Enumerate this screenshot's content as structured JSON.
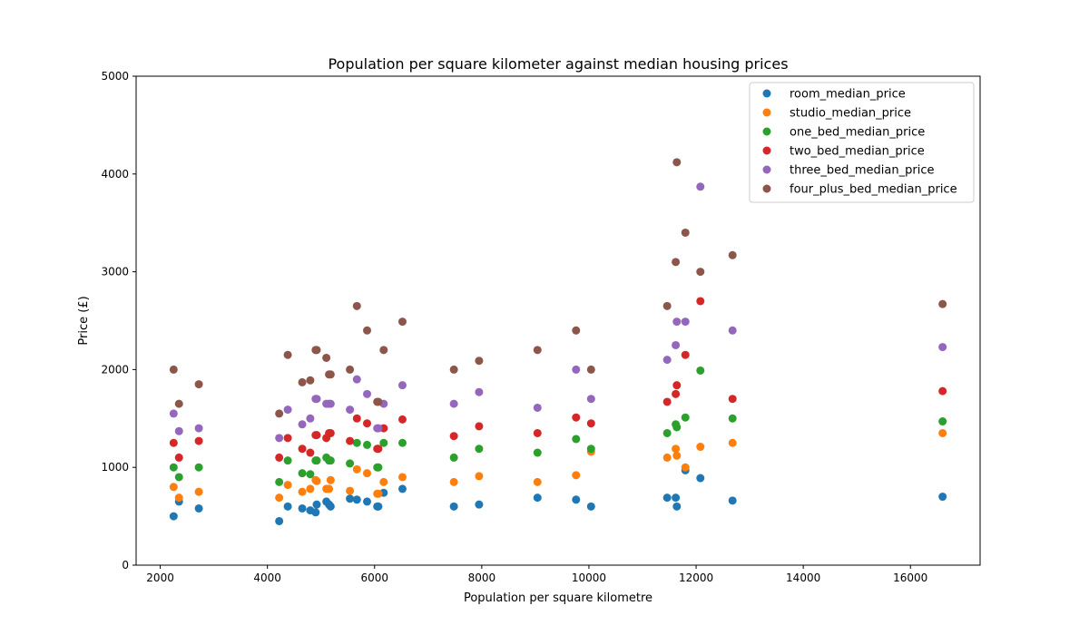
{
  "chart_data": {
    "type": "scatter",
    "title": "Population per square kilometer against median housing prices",
    "xlabel": "Population per square kilometre",
    "ylabel": "Price (£)",
    "xlim": [
      1550,
      17300
    ],
    "ylim": [
      0,
      5000
    ],
    "xticks": [
      2000,
      4000,
      6000,
      8000,
      10000,
      12000,
      14000,
      16000
    ],
    "yticks": [
      0,
      1000,
      2000,
      3000,
      4000,
      5000
    ],
    "grid": false,
    "legend_position": "top-right",
    "x": [
      2250,
      2350,
      2720,
      4220,
      4380,
      4650,
      4800,
      4900,
      4920,
      5100,
      5150,
      5180,
      5540,
      5670,
      5860,
      6050,
      6070,
      6170,
      6520,
      7480,
      7950,
      9040,
      9760,
      10040,
      11460,
      11620,
      11640,
      11800,
      12080,
      12680,
      16600
    ],
    "series": [
      {
        "name": "room_median_price",
        "color": "#1f77b4",
        "values": [
          500,
          650,
          580,
          450,
          600,
          580,
          560,
          540,
          620,
          650,
          620,
          600,
          680,
          670,
          650,
          600,
          600,
          740,
          780,
          600,
          620,
          690,
          670,
          600,
          690,
          690,
          600,
          970,
          890,
          660,
          700
        ]
      },
      {
        "name": "studio_median_price",
        "color": "#ff7f0e",
        "values": [
          800,
          690,
          750,
          690,
          820,
          750,
          780,
          870,
          860,
          780,
          780,
          870,
          760,
          980,
          940,
          730,
          730,
          850,
          900,
          850,
          910,
          850,
          920,
          1160,
          1100,
          1190,
          1120,
          1000,
          1210,
          1250,
          1350
        ]
      },
      {
        "name": "one_bed_median_price",
        "color": "#2ca02c",
        "values": [
          1000,
          900,
          1000,
          850,
          1070,
          940,
          930,
          1070,
          1070,
          1100,
          1070,
          1070,
          1040,
          1250,
          1230,
          1000,
          1000,
          1250,
          1250,
          1100,
          1190,
          1150,
          1290,
          1190,
          1350,
          1440,
          1410,
          1510,
          1990,
          1500,
          1470
        ]
      },
      {
        "name": "two_bed_median_price",
        "color": "#d62728",
        "values": [
          1250,
          1100,
          1270,
          1100,
          1300,
          1190,
          1150,
          1330,
          1330,
          1300,
          1350,
          1350,
          1270,
          1500,
          1450,
          1190,
          1190,
          1400,
          1490,
          1320,
          1420,
          1350,
          1510,
          1450,
          1670,
          1750,
          1840,
          2150,
          2700,
          1700,
          1780
        ]
      },
      {
        "name": "three_bed_median_price",
        "color": "#9467bd",
        "values": [
          1550,
          1370,
          1400,
          1300,
          1590,
          1440,
          1500,
          1700,
          1700,
          1650,
          1650,
          1650,
          1590,
          1900,
          1750,
          1400,
          1400,
          1650,
          1840,
          1650,
          1770,
          1610,
          2000,
          1700,
          2100,
          2250,
          2490,
          2490,
          3870,
          2400,
          2230
        ]
      },
      {
        "name": "four_plus_bed_median_price",
        "color": "#8c564b",
        "values": [
          2000,
          1650,
          1850,
          1550,
          2150,
          1870,
          1890,
          2200,
          2200,
          2120,
          1950,
          1950,
          2000,
          2650,
          2400,
          1670,
          1670,
          2200,
          2490,
          2000,
          2090,
          2200,
          2400,
          2000,
          2650,
          3100,
          4120,
          3400,
          3000,
          3170,
          2670
        ]
      }
    ]
  }
}
